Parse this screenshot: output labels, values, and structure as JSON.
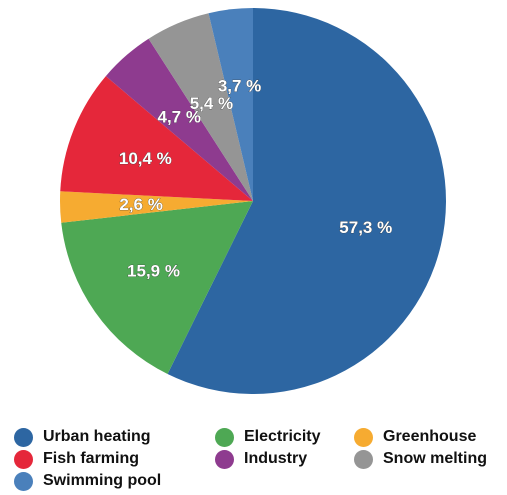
{
  "chart_data": {
    "type": "pie",
    "categories": [
      "Urban heating",
      "Electricity",
      "Greenhouse",
      "Fish farming",
      "Industry",
      "Snow melting",
      "Swimming pool"
    ],
    "values": [
      57.3,
      15.9,
      2.6,
      10.4,
      4.7,
      5.4,
      3.7
    ],
    "value_labels": [
      "57,3 %",
      "15,9 %",
      "2,6 %",
      "10,4 %",
      "4,7 %",
      "5,4 %",
      "3,7 %"
    ],
    "colors": [
      "#2d66a2",
      "#4ea854",
      "#f6ab31",
      "#e5273a",
      "#8e3b8f",
      "#959595",
      "#4a80bb"
    ],
    "start": "12 o'clock",
    "direction": "clockwise",
    "legend_position": "bottom"
  }
}
